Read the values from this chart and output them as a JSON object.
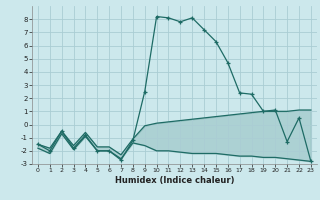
{
  "x": [
    0,
    1,
    2,
    3,
    4,
    5,
    6,
    7,
    8,
    9,
    10,
    11,
    12,
    13,
    14,
    15,
    16,
    17,
    18,
    19,
    20,
    21,
    22,
    23
  ],
  "line_main": [
    -1.5,
    -2.0,
    -0.5,
    -1.8,
    -0.8,
    -2.0,
    -2.0,
    -2.7,
    -1.2,
    2.5,
    8.2,
    8.1,
    7.8,
    8.1,
    7.2,
    6.3,
    4.7,
    2.4,
    2.3,
    1.0,
    1.1,
    -1.3,
    0.5,
    -2.8
  ],
  "line_upper": [
    -1.5,
    -1.8,
    -0.5,
    -1.6,
    -0.6,
    -1.7,
    -1.7,
    -2.3,
    -1.1,
    -0.1,
    0.1,
    0.2,
    0.3,
    0.4,
    0.5,
    0.6,
    0.7,
    0.8,
    0.9,
    1.0,
    1.0,
    1.0,
    1.1,
    1.1
  ],
  "line_lower": [
    -1.8,
    -2.2,
    -0.7,
    -1.9,
    -0.9,
    -2.0,
    -2.0,
    -2.6,
    -1.4,
    -1.6,
    -2.0,
    -2.0,
    -2.1,
    -2.2,
    -2.2,
    -2.2,
    -2.3,
    -2.4,
    -2.4,
    -2.5,
    -2.5,
    -2.6,
    -2.7,
    -2.8
  ],
  "bg_color": "#cce8ec",
  "grid_color": "#aacdd4",
  "line_color": "#1e6b65",
  "xlabel": "Humidex (Indice chaleur)",
  "ylim": [
    -3,
    9
  ],
  "xlim": [
    -0.5,
    23.5
  ],
  "yticks": [
    -3,
    -2,
    -1,
    0,
    1,
    2,
    3,
    4,
    5,
    6,
    7,
    8
  ],
  "xticks": [
    0,
    1,
    2,
    3,
    4,
    5,
    6,
    7,
    8,
    9,
    10,
    11,
    12,
    13,
    14,
    15,
    16,
    17,
    18,
    19,
    20,
    21,
    22,
    23
  ]
}
